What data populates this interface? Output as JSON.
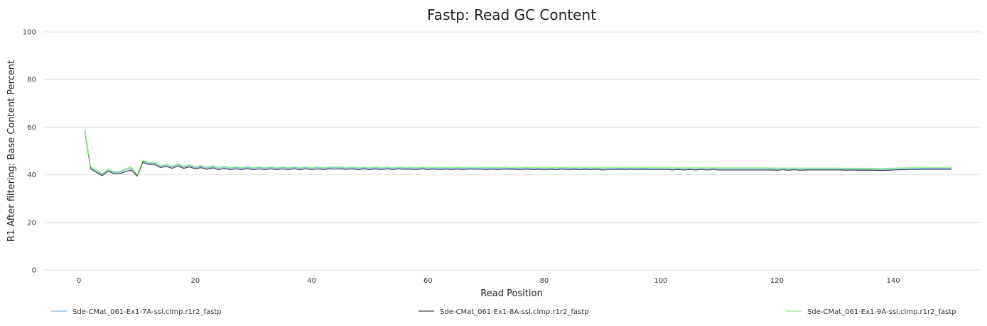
{
  "chart_data": {
    "type": "line",
    "title": "Fastp: Read GC Content",
    "xlabel": "Read Position",
    "ylabel": "R1 After filtering: Base Content Percent",
    "xlim": [
      -6,
      155
    ],
    "ylim": [
      0,
      100
    ],
    "x_ticks": [
      0,
      20,
      40,
      60,
      80,
      100,
      120,
      140
    ],
    "y_ticks": [
      0,
      20,
      40,
      60,
      80,
      100
    ],
    "grid": true,
    "legend_position": "bottom",
    "x": [
      1,
      2,
      3,
      4,
      5,
      6,
      7,
      8,
      9,
      10,
      11,
      12,
      13,
      14,
      15,
      16,
      17,
      18,
      19,
      20,
      21,
      22,
      23,
      24,
      25,
      26,
      27,
      28,
      29,
      30,
      31,
      32,
      33,
      34,
      35,
      36,
      37,
      38,
      39,
      40,
      41,
      42,
      43,
      44,
      45,
      46,
      47,
      48,
      49,
      50,
      51,
      52,
      53,
      54,
      55,
      56,
      57,
      58,
      59,
      60,
      61,
      62,
      63,
      64,
      65,
      66,
      67,
      68,
      69,
      70,
      71,
      72,
      73,
      74,
      75,
      76,
      77,
      78,
      79,
      80,
      81,
      82,
      83,
      84,
      85,
      86,
      87,
      88,
      89,
      90,
      91,
      92,
      93,
      94,
      95,
      96,
      97,
      98,
      99,
      100,
      101,
      102,
      103,
      104,
      105,
      106,
      107,
      108,
      109,
      110,
      111,
      112,
      113,
      114,
      115,
      116,
      117,
      118,
      119,
      120,
      121,
      122,
      123,
      124,
      125,
      126,
      127,
      128,
      129,
      130,
      131,
      132,
      133,
      134,
      135,
      136,
      137,
      138,
      139,
      140,
      141,
      142,
      143,
      144,
      145,
      146,
      147,
      148,
      149,
      150
    ],
    "series": [
      {
        "name": "Sde-CMat_061-Ex1-7A-ssl.clmp.r1r2_fastp",
        "color": "#7cb5ec",
        "values": [
          59.0,
          43.0,
          41.5,
          40.0,
          42.0,
          41.0,
          41.0,
          42.0,
          42.8,
          39.8,
          45.8,
          44.8,
          44.8,
          43.5,
          44.0,
          43.2,
          44.2,
          43.2,
          43.8,
          43.0,
          43.5,
          42.8,
          43.4,
          42.6,
          43.2,
          42.6,
          43.0,
          42.6,
          43.1,
          42.6,
          43.0,
          42.6,
          43.0,
          42.6,
          43.0,
          42.6,
          43.0,
          42.6,
          43.0,
          42.6,
          43.0,
          42.6,
          42.9,
          42.9,
          42.9,
          42.7,
          42.9,
          42.6,
          42.9,
          42.6,
          42.9,
          42.6,
          42.9,
          42.6,
          42.9,
          42.7,
          42.8,
          42.6,
          42.9,
          42.6,
          42.8,
          42.6,
          42.8,
          42.6,
          42.8,
          42.6,
          42.8,
          42.7,
          42.8,
          42.6,
          42.8,
          42.6,
          42.8,
          42.7,
          42.7,
          42.6,
          42.8,
          42.6,
          42.7,
          42.6,
          42.7,
          42.6,
          42.8,
          42.6,
          42.7,
          42.6,
          42.7,
          42.6,
          42.7,
          42.5,
          42.6,
          42.6,
          42.7,
          42.6,
          42.7,
          42.6,
          42.7,
          42.6,
          42.6,
          42.6,
          42.6,
          42.5,
          42.6,
          42.5,
          42.6,
          42.5,
          42.6,
          42.5,
          42.6,
          42.5,
          42.5,
          42.5,
          42.5,
          42.5,
          42.5,
          42.5,
          42.5,
          42.5,
          42.5,
          42.4,
          42.5,
          42.4,
          42.5,
          42.4,
          42.4,
          42.4,
          42.4,
          42.4,
          42.4,
          42.4,
          42.4,
          42.3,
          42.4,
          42.3,
          42.3,
          42.3,
          42.3,
          42.2,
          42.3,
          42.4,
          42.5,
          42.5,
          42.6,
          42.6,
          42.7,
          42.7,
          42.7,
          42.7,
          42.7,
          42.7
        ]
      },
      {
        "name": "Sde-CMat_061-Ex1-8A-ssl.clmp.r1r2_fastp",
        "color": "#434348",
        "values": [
          58.8,
          42.5,
          41.0,
          39.6,
          41.5,
          40.5,
          40.5,
          41.3,
          42.0,
          39.4,
          45.3,
          44.3,
          44.3,
          43.0,
          43.5,
          42.7,
          43.7,
          42.7,
          43.3,
          42.5,
          43.0,
          42.3,
          42.9,
          42.1,
          42.7,
          42.1,
          42.5,
          42.1,
          42.6,
          42.1,
          42.5,
          42.1,
          42.5,
          42.1,
          42.5,
          42.1,
          42.5,
          42.1,
          42.5,
          42.1,
          42.5,
          42.1,
          42.5,
          42.4,
          42.5,
          42.2,
          42.5,
          42.1,
          42.5,
          42.1,
          42.5,
          42.1,
          42.5,
          42.1,
          42.5,
          42.2,
          42.4,
          42.1,
          42.5,
          42.1,
          42.4,
          42.1,
          42.4,
          42.1,
          42.4,
          42.1,
          42.4,
          42.3,
          42.4,
          42.1,
          42.4,
          42.1,
          42.4,
          42.3,
          42.3,
          42.1,
          42.4,
          42.1,
          42.3,
          42.1,
          42.3,
          42.1,
          42.4,
          42.1,
          42.3,
          42.1,
          42.3,
          42.1,
          42.3,
          42.0,
          42.2,
          42.2,
          42.3,
          42.2,
          42.3,
          42.2,
          42.3,
          42.2,
          42.2,
          42.2,
          42.2,
          42.0,
          42.2,
          42.0,
          42.2,
          42.0,
          42.2,
          42.0,
          42.2,
          42.0,
          42.0,
          42.0,
          42.0,
          42.0,
          42.0,
          42.0,
          42.0,
          42.0,
          42.0,
          41.9,
          42.1,
          41.9,
          42.1,
          41.9,
          42.0,
          42.0,
          42.0,
          42.0,
          42.0,
          42.0,
          42.0,
          41.9,
          42.0,
          41.9,
          41.9,
          41.9,
          41.9,
          41.8,
          41.9,
          42.0,
          42.1,
          42.1,
          42.2,
          42.2,
          42.3,
          42.3,
          42.3,
          42.3,
          42.3,
          42.3
        ]
      },
      {
        "name": "Sde-CMat_061-Ex1-9A-ssl.clmp.r1r2_fastp",
        "color": "#90ed7d",
        "values": [
          59.2,
          43.4,
          42.0,
          40.3,
          42.3,
          41.4,
          41.5,
          42.5,
          43.3,
          40.0,
          46.2,
          45.2,
          45.2,
          43.9,
          44.4,
          43.6,
          44.6,
          43.6,
          44.2,
          43.4,
          43.9,
          43.2,
          43.8,
          43.0,
          43.6,
          43.0,
          43.4,
          43.0,
          43.5,
          43.0,
          43.4,
          43.0,
          43.4,
          43.0,
          43.4,
          43.0,
          43.4,
          43.0,
          43.4,
          43.0,
          43.4,
          43.0,
          43.3,
          43.3,
          43.3,
          43.1,
          43.3,
          43.0,
          43.3,
          43.0,
          43.3,
          43.0,
          43.3,
          43.0,
          43.3,
          43.1,
          43.2,
          43.0,
          43.3,
          43.0,
          43.2,
          43.0,
          43.2,
          43.0,
          43.2,
          43.0,
          43.2,
          43.1,
          43.2,
          43.0,
          43.2,
          43.0,
          43.2,
          43.1,
          43.1,
          43.0,
          43.2,
          43.0,
          43.1,
          43.0,
          43.1,
          43.0,
          43.2,
          43.0,
          43.1,
          43.0,
          43.1,
          43.0,
          43.1,
          42.9,
          43.0,
          43.0,
          43.1,
          43.0,
          43.1,
          43.0,
          43.1,
          43.0,
          43.0,
          43.0,
          43.0,
          42.9,
          43.0,
          42.9,
          43.0,
          42.9,
          43.0,
          42.9,
          43.0,
          42.9,
          42.9,
          42.9,
          42.9,
          42.9,
          42.9,
          42.9,
          42.9,
          42.9,
          42.9,
          42.8,
          42.9,
          42.8,
          42.9,
          42.8,
          42.8,
          42.8,
          42.8,
          42.8,
          42.8,
          42.8,
          42.8,
          42.7,
          42.8,
          42.7,
          42.7,
          42.7,
          42.7,
          42.6,
          42.7,
          42.8,
          42.9,
          42.9,
          43.0,
          43.0,
          43.1,
          43.1,
          43.1,
          43.1,
          43.1,
          43.1
        ]
      }
    ]
  }
}
